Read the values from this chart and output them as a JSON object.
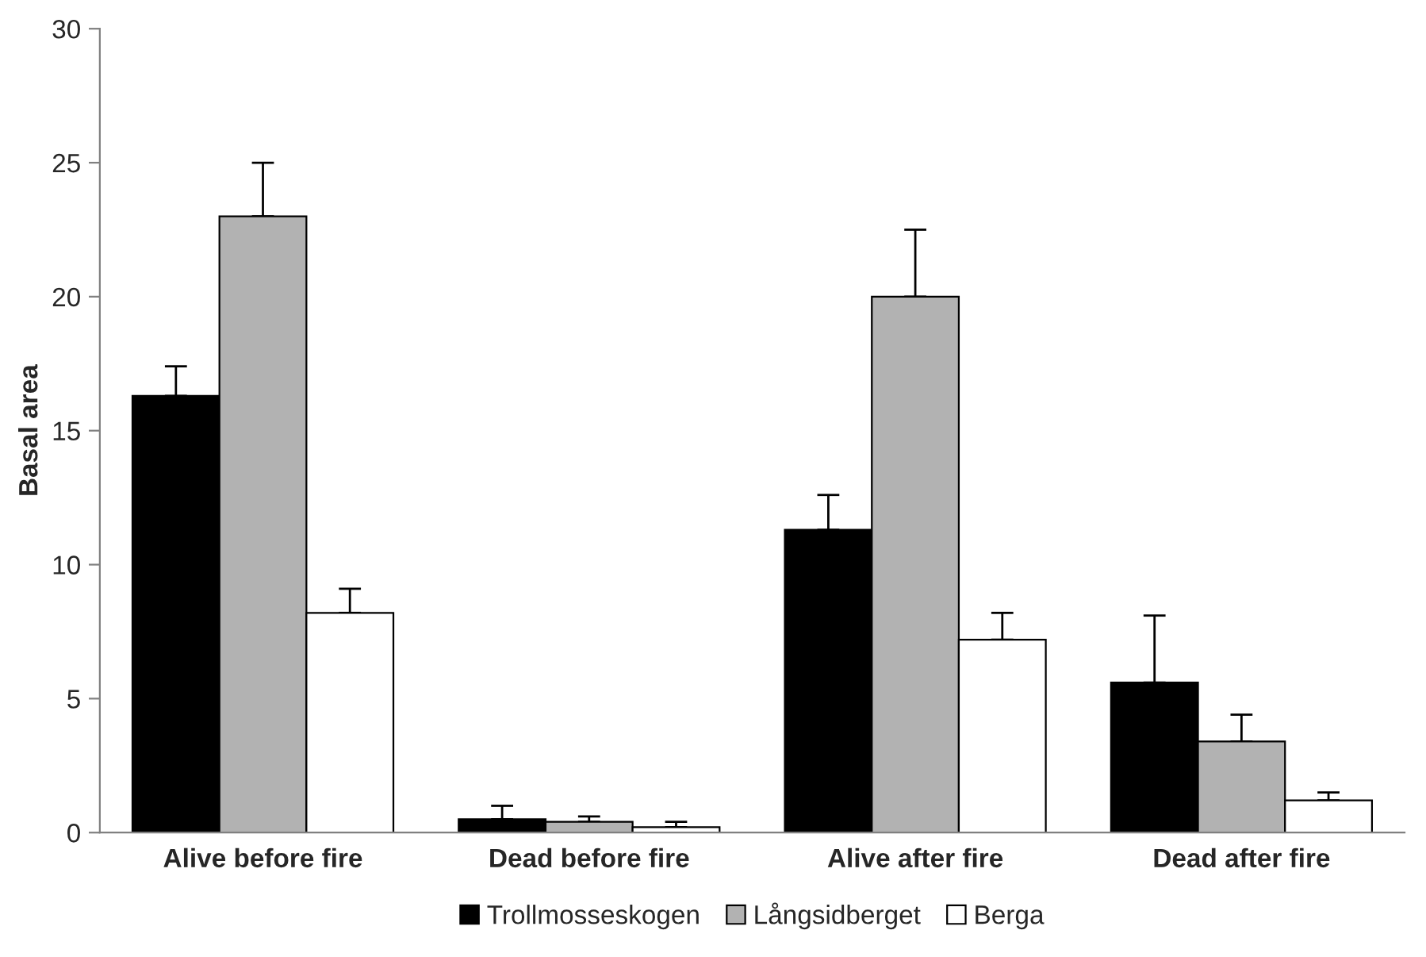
{
  "chart_data": {
    "type": "bar",
    "ylabel": "Basal area",
    "categories": [
      "Alive before fire",
      "Dead before fire",
      "Alive after fire",
      "Dead after fire"
    ],
    "series": [
      {
        "name": "Trollmosseskogen",
        "color": "#000000",
        "values": [
          16.3,
          0.5,
          11.3,
          5.6
        ],
        "errors": [
          [
            16.3,
            17.4
          ],
          [
            0.5,
            1.0
          ],
          [
            11.3,
            12.6
          ],
          [
            5.6,
            8.1
          ]
        ]
      },
      {
        "name": "Långsidberget",
        "color": "#b2b2b2",
        "values": [
          23.0,
          0.4,
          20.0,
          3.4
        ],
        "errors": [
          [
            23.0,
            25.0
          ],
          [
            0.4,
            0.6
          ],
          [
            20.0,
            22.5
          ],
          [
            3.4,
            4.4
          ]
        ]
      },
      {
        "name": "Berga",
        "color": "#ffffff",
        "values": [
          8.2,
          0.2,
          7.2,
          1.2
        ],
        "errors": [
          [
            8.2,
            9.1
          ],
          [
            0.2,
            0.4
          ],
          [
            7.2,
            8.2
          ],
          [
            1.2,
            1.5
          ]
        ]
      }
    ],
    "ylim": [
      0,
      30
    ],
    "yticks": [
      0,
      5,
      10,
      15,
      20,
      25,
      30
    ],
    "grid": false,
    "legend": "bottom"
  }
}
